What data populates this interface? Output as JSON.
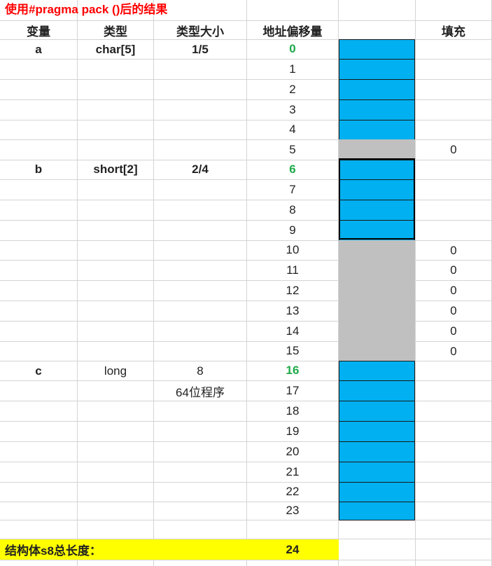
{
  "title": "使用#pragma pack ()后的结果",
  "headers": {
    "variable": "变量",
    "type": "类型",
    "type_size": "类型大小",
    "offset": "地址偏移量",
    "padding": "填充"
  },
  "variables": [
    {
      "name": "a",
      "type": "char[5]",
      "size": "1/5"
    },
    {
      "name": "b",
      "type": "short[2]",
      "size": "2/4"
    },
    {
      "name": "c",
      "type": "long",
      "size": "8",
      "size_note": "64位程序"
    }
  ],
  "offsets": [
    "0",
    "1",
    "2",
    "3",
    "4",
    "5",
    "6",
    "7",
    "8",
    "9",
    "10",
    "11",
    "12",
    "13",
    "14",
    "15",
    "16",
    "17",
    "18",
    "19",
    "20",
    "21",
    "22",
    "23"
  ],
  "padding_values": [
    "0",
    "0",
    "0",
    "0",
    "0",
    "0",
    "0"
  ],
  "footer": {
    "label": "结构体s8总长度：",
    "total": "24"
  },
  "colors": {
    "title": "#ff0000",
    "data_fill": "#00b0f0",
    "padding_fill": "#c0c0c0",
    "start_offset": "#1faa4a",
    "footer_fill": "#ffff00"
  }
}
